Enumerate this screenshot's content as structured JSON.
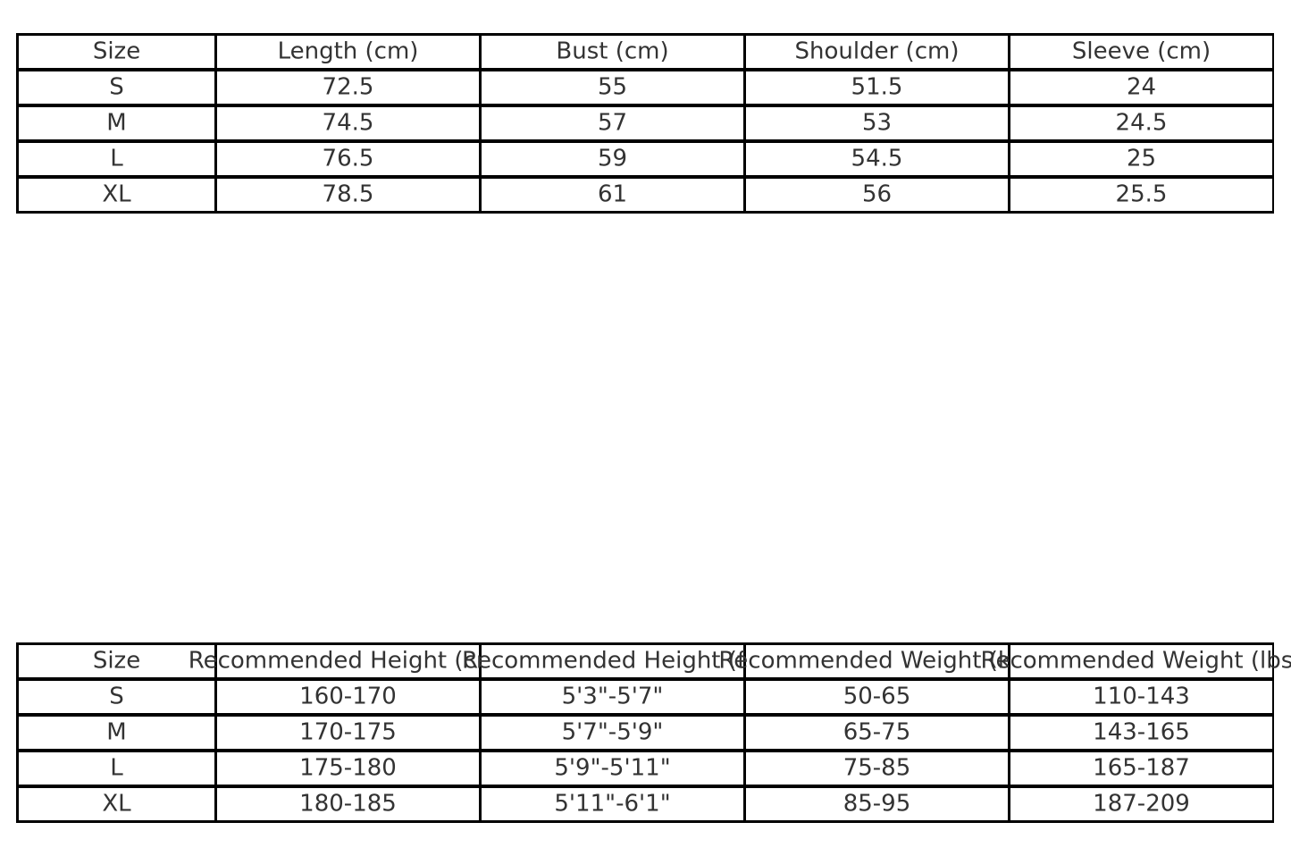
{
  "measurement_table": {
    "headers": [
      "Size",
      "Length (cm)",
      "Bust (cm)",
      "Shoulder (cm)",
      "Sleeve (cm)"
    ],
    "rows": [
      [
        "S",
        "72.5",
        "55",
        "51.5",
        "24"
      ],
      [
        "M",
        "74.5",
        "57",
        "53",
        "24.5"
      ],
      [
        "L",
        "76.5",
        "59",
        "54.5",
        "25"
      ],
      [
        "XL",
        "78.5",
        "61",
        "56",
        "25.5"
      ]
    ]
  },
  "recommendation_table": {
    "headers": [
      "Size",
      "Recommended Height (cm)",
      "Recommended Height (ft)",
      "Recommended Weight (kg)",
      "Recommended Weight (lbs)"
    ],
    "rows": [
      [
        "S",
        "160-170",
        "5'3\"-5'7\"",
        "50-65",
        "110-143"
      ],
      [
        "M",
        "170-175",
        "5'7\"-5'9\"",
        "65-75",
        "143-165"
      ],
      [
        "L",
        "175-180",
        "5'9\"-5'11\"",
        "75-85",
        "165-187"
      ],
      [
        "XL",
        "180-185",
        "5'11\"-6'1\"",
        "85-95",
        "187-209"
      ]
    ]
  }
}
